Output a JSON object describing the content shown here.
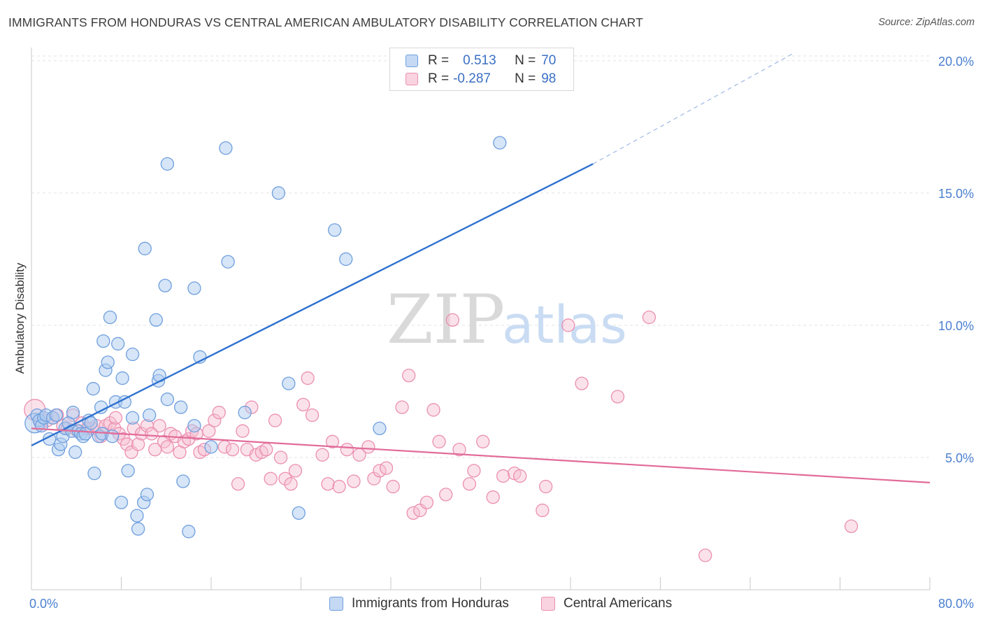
{
  "header": {
    "title": "IMMIGRANTS FROM HONDURAS VS CENTRAL AMERICAN AMBULATORY DISABILITY CORRELATION CHART",
    "source": "Source: ZipAtlas.com"
  },
  "watermark": {
    "zip": "ZIP",
    "atlas": "atlas"
  },
  "legend": {
    "rows": [
      {
        "r_label": "R =",
        "r_value": "0.513",
        "n_label": "N =",
        "n_value": "70"
      },
      {
        "r_label": "R =",
        "r_value": "-0.287",
        "n_label": "N =",
        "n_value": "98"
      }
    ]
  },
  "colors": {
    "blue_fill": "#aecbef",
    "blue_stroke": "#6f9fde",
    "blue_line": "#2f72d0",
    "pink_fill": "#f6bfd1",
    "pink_stroke": "#eb8fb0",
    "pink_line": "#e26b98",
    "axis_text": "#4a7fd0",
    "grid": "#e3e3e3"
  },
  "chart_data": {
    "type": "scatter",
    "xlabel": "",
    "ylabel": "Ambulatory Disability",
    "xlim": [
      0,
      80
    ],
    "ylim": [
      0,
      20.5
    ],
    "x_tick_labels": [
      "0.0%",
      "80.0%"
    ],
    "y_ticks": [
      5,
      10,
      15,
      20
    ],
    "y_tick_labels": [
      "5.0%",
      "10.0%",
      "15.0%",
      "20.0%"
    ],
    "grid": "horizontal dashed",
    "legend_position": "top-center",
    "series": [
      {
        "name": "Immigrants from Honduras",
        "color": "#6f9fde",
        "trend": {
          "x": [
            0,
            50
          ],
          "y": [
            5.45,
            16.1
          ],
          "dashed_extension_to": [
            68,
            20.0
          ]
        },
        "points": [
          [
            0.3,
            6.3
          ],
          [
            0.5,
            6.6
          ],
          [
            0.7,
            6.4
          ],
          [
            0.9,
            6.2
          ],
          [
            1.1,
            6.5
          ],
          [
            1.3,
            6.6
          ],
          [
            1.6,
            5.7
          ],
          [
            1.9,
            6.5
          ],
          [
            2.2,
            6.6
          ],
          [
            2.4,
            5.3
          ],
          [
            2.6,
            5.5
          ],
          [
            2.8,
            5.8
          ],
          [
            3.0,
            6.1
          ],
          [
            3.3,
            6.3
          ],
          [
            3.6,
            6.0
          ],
          [
            3.7,
            6.7
          ],
          [
            3.9,
            5.2
          ],
          [
            4.2,
            6.0
          ],
          [
            4.4,
            5.9
          ],
          [
            4.6,
            5.8
          ],
          [
            4.8,
            5.9
          ],
          [
            5.1,
            6.4
          ],
          [
            5.3,
            6.3
          ],
          [
            5.5,
            7.6
          ],
          [
            5.6,
            4.4
          ],
          [
            6.0,
            5.8
          ],
          [
            6.2,
            6.9
          ],
          [
            6.3,
            5.9
          ],
          [
            6.4,
            9.4
          ],
          [
            6.6,
            8.3
          ],
          [
            6.8,
            8.6
          ],
          [
            7.0,
            10.3
          ],
          [
            7.2,
            5.8
          ],
          [
            7.5,
            7.1
          ],
          [
            7.7,
            9.3
          ],
          [
            8.0,
            3.3
          ],
          [
            8.1,
            8.0
          ],
          [
            8.3,
            7.1
          ],
          [
            8.6,
            4.5
          ],
          [
            9.0,
            8.9
          ],
          [
            9.0,
            6.5
          ],
          [
            9.4,
            2.8
          ],
          [
            9.5,
            2.3
          ],
          [
            10.0,
            3.3
          ],
          [
            10.1,
            12.9
          ],
          [
            10.3,
            3.6
          ],
          [
            10.5,
            6.6
          ],
          [
            11.1,
            10.2
          ],
          [
            11.3,
            7.9
          ],
          [
            11.4,
            8.1
          ],
          [
            11.9,
            11.5
          ],
          [
            12.1,
            16.1
          ],
          [
            12.1,
            7.2
          ],
          [
            13.3,
            6.9
          ],
          [
            13.5,
            4.1
          ],
          [
            14.0,
            2.2
          ],
          [
            14.5,
            6.2
          ],
          [
            14.5,
            11.4
          ],
          [
            15.0,
            8.8
          ],
          [
            16.0,
            5.4
          ],
          [
            17.3,
            16.7
          ],
          [
            17.5,
            12.4
          ],
          [
            19.0,
            6.7
          ],
          [
            22.0,
            15.0
          ],
          [
            22.9,
            7.8
          ],
          [
            23.8,
            2.9
          ],
          [
            27.0,
            13.6
          ],
          [
            28.0,
            12.5
          ],
          [
            31.0,
            6.1
          ],
          [
            41.7,
            16.9
          ]
        ]
      },
      {
        "name": "Central Americans",
        "color": "#eb8fb0",
        "trend": {
          "x": [
            0,
            80
          ],
          "y": [
            6.1,
            4.05
          ]
        },
        "points": [
          [
            0.3,
            6.8
          ],
          [
            0.8,
            6.3
          ],
          [
            1.4,
            6.4
          ],
          [
            1.9,
            6.5
          ],
          [
            2.3,
            6.6
          ],
          [
            2.8,
            6.2
          ],
          [
            3.2,
            6.1
          ],
          [
            3.7,
            6.6
          ],
          [
            4.1,
            6.0
          ],
          [
            4.5,
            6.3
          ],
          [
            5.0,
            6.1
          ],
          [
            5.4,
            6.1
          ],
          [
            5.8,
            6.2
          ],
          [
            6.2,
            5.8
          ],
          [
            6.6,
            6.2
          ],
          [
            7.0,
            6.3
          ],
          [
            7.4,
            6.1
          ],
          [
            7.5,
            6.5
          ],
          [
            7.8,
            5.9
          ],
          [
            8.2,
            5.7
          ],
          [
            8.5,
            5.5
          ],
          [
            8.9,
            5.2
          ],
          [
            9.1,
            6.1
          ],
          [
            9.5,
            5.5
          ],
          [
            9.8,
            5.9
          ],
          [
            10.3,
            6.2
          ],
          [
            10.7,
            5.9
          ],
          [
            11.0,
            5.3
          ],
          [
            11.4,
            6.2
          ],
          [
            11.8,
            5.6
          ],
          [
            12.1,
            5.4
          ],
          [
            12.4,
            5.9
          ],
          [
            12.8,
            5.8
          ],
          [
            13.2,
            5.2
          ],
          [
            13.6,
            5.6
          ],
          [
            14.0,
            5.7
          ],
          [
            14.3,
            6.0
          ],
          [
            14.7,
            5.9
          ],
          [
            15.0,
            5.2
          ],
          [
            15.4,
            5.3
          ],
          [
            15.8,
            6.0
          ],
          [
            16.3,
            6.4
          ],
          [
            16.7,
            6.7
          ],
          [
            17.2,
            5.4
          ],
          [
            17.9,
            5.3
          ],
          [
            18.4,
            4.0
          ],
          [
            18.8,
            6.0
          ],
          [
            19.2,
            5.3
          ],
          [
            19.6,
            6.9
          ],
          [
            20.0,
            5.1
          ],
          [
            20.5,
            5.2
          ],
          [
            20.9,
            5.3
          ],
          [
            21.3,
            4.2
          ],
          [
            21.7,
            6.4
          ],
          [
            22.2,
            5.0
          ],
          [
            22.6,
            4.2
          ],
          [
            23.1,
            4.0
          ],
          [
            23.5,
            4.5
          ],
          [
            24.2,
            7.0
          ],
          [
            24.6,
            8.0
          ],
          [
            25.0,
            6.6
          ],
          [
            25.9,
            5.1
          ],
          [
            26.4,
            4.0
          ],
          [
            26.8,
            5.6
          ],
          [
            27.4,
            3.9
          ],
          [
            28.1,
            5.3
          ],
          [
            28.7,
            4.1
          ],
          [
            29.2,
            5.1
          ],
          [
            30.0,
            5.4
          ],
          [
            30.5,
            4.2
          ],
          [
            31.0,
            4.5
          ],
          [
            31.6,
            4.6
          ],
          [
            32.2,
            3.9
          ],
          [
            33.0,
            6.9
          ],
          [
            33.6,
            8.1
          ],
          [
            34.0,
            2.9
          ],
          [
            34.6,
            3.0
          ],
          [
            35.2,
            3.3
          ],
          [
            35.8,
            6.8
          ],
          [
            36.3,
            5.6
          ],
          [
            36.9,
            3.6
          ],
          [
            37.5,
            10.2
          ],
          [
            38.1,
            5.3
          ],
          [
            39.0,
            4.0
          ],
          [
            39.4,
            4.5
          ],
          [
            40.2,
            5.6
          ],
          [
            41.1,
            3.5
          ],
          [
            42.0,
            4.3
          ],
          [
            43.0,
            4.4
          ],
          [
            43.5,
            4.3
          ],
          [
            45.5,
            3.0
          ],
          [
            45.8,
            3.9
          ],
          [
            47.8,
            10.0
          ],
          [
            49.0,
            7.8
          ],
          [
            52.2,
            7.3
          ],
          [
            55.0,
            10.3
          ],
          [
            60.0,
            1.3
          ],
          [
            73.0,
            2.4
          ]
        ]
      }
    ]
  }
}
